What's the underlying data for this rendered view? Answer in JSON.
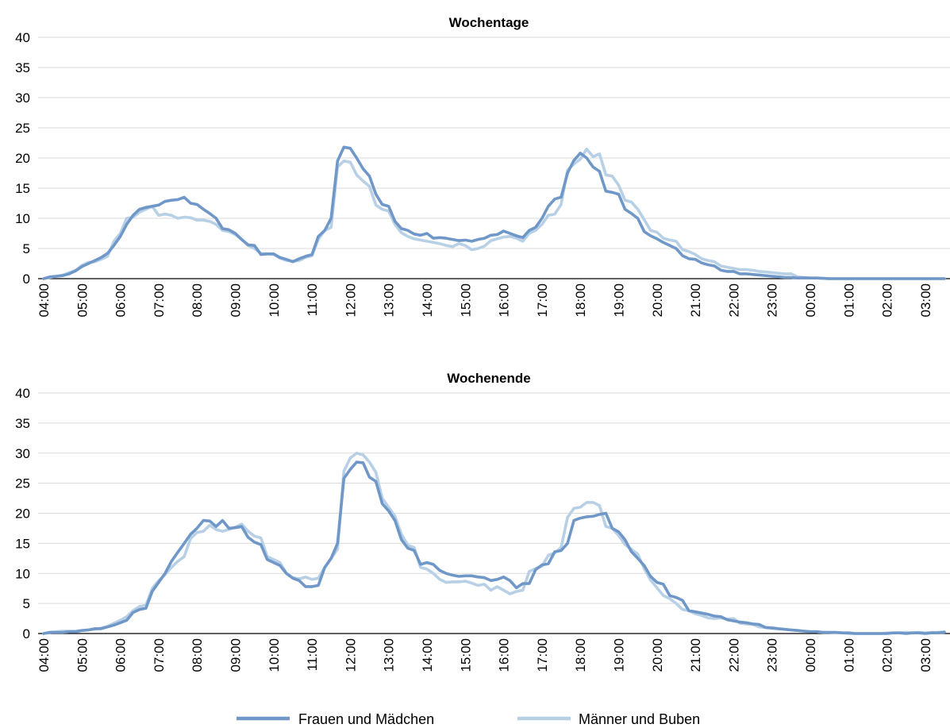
{
  "legend": {
    "position": "bottom",
    "items": [
      {
        "label": "Frauen und Mädchen",
        "color": "#6f97c8"
      },
      {
        "label": "Männer und Buben",
        "color": "#b8d0e6"
      }
    ]
  },
  "chart_data": [
    {
      "type": "line",
      "title": "Wochentage",
      "xlabel": "",
      "ylabel": "",
      "ylim": [
        0,
        40
      ],
      "yticks": [
        "0",
        "5",
        "10",
        "15",
        "20",
        "25",
        "30",
        "35",
        "40"
      ],
      "xticks": [
        "04:00",
        "05:00",
        "06:00",
        "07:00",
        "08:00",
        "09:00",
        "10:00",
        "11:00",
        "12:00",
        "13:00",
        "14:00",
        "15:00",
        "16:00",
        "17:00",
        "18:00",
        "19:00",
        "20:00",
        "21:00",
        "22:00",
        "23:00",
        "00:00",
        "01:00",
        "02:00",
        "03:00"
      ],
      "grid": "horizontal",
      "series": [
        {
          "name": "Frauen und Mädchen",
          "color": "#6f97c8",
          "values": [
            0,
            0.3,
            0.4,
            0.5,
            0.8,
            1.3,
            2.0,
            2.5,
            3.0,
            3.5,
            4.2,
            5.5,
            7,
            9,
            10.5,
            11.5,
            11.8,
            12,
            12.2,
            12.8,
            13,
            13.1,
            13.5,
            12.5,
            12.3,
            11.5,
            10.8,
            10,
            8.3,
            8.1,
            7.5,
            6.5,
            5.6,
            5.5,
            4,
            4.1,
            4.1,
            3.5,
            3.2,
            2.8,
            3.3,
            3.7,
            4,
            7,
            8,
            10,
            19.5,
            21.8,
            21.6,
            20,
            18.2,
            17,
            14,
            12.3,
            12,
            9.5,
            8.3,
            8,
            7.4,
            7.2,
            7.5,
            6.7,
            6.8,
            6.7,
            6.5,
            6.3,
            6.4,
            6.2,
            6.5,
            6.7,
            7.2,
            7.3,
            7.9,
            7.5,
            7.1,
            6.8,
            8,
            8.5,
            10,
            12,
            13.2,
            13.5,
            17.5,
            19.6,
            20.8,
            20,
            18.5,
            17.8,
            14.5,
            14.3,
            14,
            11.5,
            10.8,
            10,
            7.8,
            7.1,
            6.6,
            6,
            5.5,
            5,
            3.8,
            3.3,
            3.2,
            2.6,
            2.3,
            2.1,
            1.4,
            1.2,
            1.2,
            0.8,
            0.8,
            0.7,
            0.6,
            0.5,
            0.4,
            0.3,
            0.2,
            0.2,
            0.1,
            0.15,
            0.1,
            0.1,
            0.05,
            0,
            0,
            0,
            0,
            0,
            0,
            0,
            0,
            0,
            0,
            0,
            0,
            0,
            0,
            0,
            0,
            0,
            0,
            0,
            0,
            0,
            0
          ]
        },
        {
          "name": "Männer und Buben",
          "color": "#b8d0e6",
          "values": [
            0,
            0.2,
            0.4,
            0.6,
            1.0,
            1.4,
            2.2,
            2.7,
            2.8,
            3.2,
            3.7,
            6.2,
            7.5,
            10,
            10.2,
            11,
            11.5,
            12,
            10.5,
            10.7,
            10.5,
            10,
            10.2,
            10.1,
            9.7,
            9.7,
            9.5,
            9,
            8,
            7.8,
            7.3,
            6.5,
            5.5,
            5,
            4.2,
            4.1,
            4,
            3.4,
            3,
            2.9,
            3,
            3.5,
            3.8,
            6.5,
            8,
            8.5,
            18.5,
            19.5,
            19.3,
            17.2,
            16.2,
            15.3,
            12.2,
            11.5,
            11.2,
            9,
            7.6,
            7,
            6.6,
            6.4,
            6.2,
            6,
            5.8,
            5.5,
            5.3,
            5.8,
            5.5,
            4.8,
            5,
            5.4,
            6.3,
            6.6,
            6.9,
            7,
            6.7,
            6.2,
            7.5,
            8,
            9,
            10.5,
            10.7,
            12.3,
            18,
            19,
            19.8,
            21.5,
            20.2,
            20.7,
            17.2,
            17,
            15.5,
            13,
            12.7,
            11.5,
            9.8,
            8,
            7.7,
            6.7,
            6.4,
            6.2,
            4.8,
            4.5,
            4,
            3.3,
            3,
            2.8,
            2.1,
            1.9,
            1.7,
            1.5,
            1.5,
            1.4,
            1.2,
            1.1,
            1,
            0.9,
            0.8,
            0.8,
            0.3,
            0.2,
            0.1,
            0.1,
            0.05,
            0,
            0,
            0,
            0,
            0,
            0,
            0,
            0,
            0,
            0,
            0,
            0,
            0,
            0,
            0,
            0,
            0,
            0,
            0,
            0,
            0,
            0
          ]
        }
      ]
    },
    {
      "type": "line",
      "title": "Wochenende",
      "xlabel": "",
      "ylabel": "",
      "ylim": [
        0,
        40
      ],
      "yticks": [
        "0",
        "5",
        "10",
        "15",
        "20",
        "25",
        "30",
        "35",
        "40"
      ],
      "xticks": [
        "04:00",
        "05:00",
        "06:00",
        "07:00",
        "08:00",
        "09:00",
        "10:00",
        "11:00",
        "12:00",
        "13:00",
        "14:00",
        "15:00",
        "16:00",
        "17:00",
        "18:00",
        "19:00",
        "20:00",
        "21:00",
        "22:00",
        "23:00",
        "00:00",
        "01:00",
        "02:00",
        "03:00"
      ],
      "grid": "horizontal",
      "series": [
        {
          "name": "Frauen und Mädchen",
          "color": "#6f97c8",
          "values": [
            0,
            0.2,
            0.2,
            0.2,
            0.3,
            0.3,
            0.5,
            0.6,
            0.8,
            0.8,
            1.1,
            1.4,
            1.8,
            2.2,
            3.5,
            4,
            4.2,
            7,
            8.5,
            10,
            12,
            13.5,
            15,
            16.5,
            17.5,
            18.8,
            18.7,
            17.8,
            18.8,
            17.5,
            17.6,
            17.8,
            16,
            15.2,
            14.8,
            12.3,
            11.8,
            11.3,
            10,
            9.2,
            8.8,
            7.8,
            7.8,
            8,
            11,
            12.5,
            15,
            25.8,
            27.3,
            28.5,
            28.4,
            26,
            25.3,
            21.6,
            20.4,
            18.8,
            15.6,
            14.2,
            13.8,
            11.5,
            11.8,
            11.5,
            10.5,
            10,
            9.7,
            9.5,
            9.6,
            9.6,
            9.4,
            9.3,
            8.8,
            9,
            9.4,
            8.8,
            7.6,
            8.3,
            8.3,
            10.6,
            11.4,
            11.6,
            13.6,
            13.8,
            15,
            18.8,
            19.2,
            19.4,
            19.5,
            19.8,
            20,
            17.5,
            16.9,
            15.6,
            13.6,
            12.5,
            11.3,
            9.5,
            8.5,
            8.2,
            6.3,
            6.0,
            5.5,
            3.8,
            3.6,
            3.4,
            3.2,
            2.9,
            2.8,
            2.3,
            2.1,
            1.9,
            1.8,
            1.6,
            1.5,
            1.0,
            0.9,
            0.8,
            0.7,
            0.6,
            0.5,
            0.4,
            0.3,
            0.3,
            0.2,
            0.2,
            0.2,
            0.1,
            0.1,
            0,
            0,
            0,
            0,
            0,
            0,
            0.1,
            0.1,
            0,
            0.1,
            0.1,
            0,
            0.1,
            0.1,
            0.2,
            0.3
          ]
        },
        {
          "name": "Männer und Buben",
          "color": "#b8d0e6",
          "values": [
            0,
            0.2,
            0.3,
            0.4,
            0.4,
            0.4,
            0.5,
            0.6,
            0.7,
            0.9,
            1.2,
            1.7,
            2.2,
            2.8,
            3.8,
            4.5,
            4.7,
            7.5,
            8.8,
            9.8,
            11,
            12,
            12.8,
            15.8,
            16.8,
            17.0,
            18.0,
            17.3,
            17.0,
            17.3,
            17.7,
            18.2,
            17.0,
            16.2,
            15.9,
            12.8,
            12.3,
            11.8,
            10,
            9.3,
            9.1,
            9.4,
            9.0,
            9.2,
            11,
            12.5,
            14,
            27,
            29.2,
            30,
            29.7,
            28.5,
            26.8,
            22.5,
            21,
            19.5,
            16.5,
            14.7,
            14.3,
            11,
            10.7,
            10,
            9,
            8.5,
            8.6,
            8.6,
            8.7,
            8.4,
            8,
            8.2,
            7.2,
            7.8,
            7.2,
            6.6,
            7,
            7.2,
            10.3,
            10.8,
            11.2,
            13,
            13.4,
            14.3,
            19.3,
            20.8,
            21,
            21.8,
            21.8,
            21.3,
            17.8,
            17.5,
            16.3,
            14.8,
            14,
            13.2,
            10.8,
            8.9,
            7.6,
            6.3,
            5.8,
            5.0,
            4.0,
            3.8,
            3.3,
            3.0,
            2.6,
            2.5,
            2.6,
            2.4,
            2.5,
            1.7,
            1.6,
            1.5,
            1.1,
            1.0,
            1.0,
            0.8,
            0.7,
            0.6,
            0.5,
            0.4,
            0.3,
            0.3,
            0.2,
            0.2,
            0.1,
            0.1,
            0,
            0,
            0,
            0,
            0,
            0,
            0.1,
            0.1,
            0.1,
            0.2,
            0.1,
            0.2,
            0.1,
            0.2,
            0.2,
            0.3
          ]
        }
      ]
    }
  ]
}
